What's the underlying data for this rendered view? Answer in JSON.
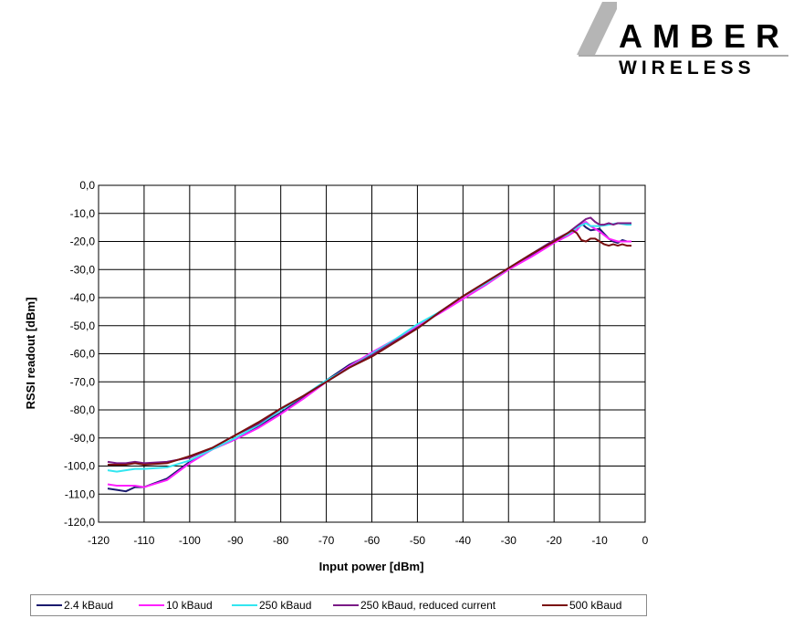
{
  "logo": {
    "line1": "AMBER",
    "line2": "WIRELESS"
  },
  "chart_data": {
    "type": "line",
    "title": "",
    "xlabel": "Input power [dBm]",
    "ylabel": "RSSI readout [dBm]",
    "xlim": [
      -120,
      0
    ],
    "ylim": [
      -120,
      0
    ],
    "x_ticks": [
      "-120",
      "-110",
      "-100",
      "-90",
      "-80",
      "-70",
      "-60",
      "-50",
      "-40",
      "-30",
      "-20",
      "-10",
      "0"
    ],
    "y_ticks": [
      "0,0",
      "-10,0",
      "-20,0",
      "-30,0",
      "-40,0",
      "-50,0",
      "-60,0",
      "-70,0",
      "-80,0",
      "-90,0",
      "-100,0",
      "-110,0",
      "-120,0"
    ],
    "grid": true,
    "legend_position": "bottom",
    "series": [
      {
        "name": "2.4 kBaud",
        "color": "#1a1a6e",
        "points": [
          [
            -118,
            -108
          ],
          [
            -116,
            -108.5
          ],
          [
            -114,
            -109
          ],
          [
            -112,
            -107.5
          ],
          [
            -110,
            -107.5
          ],
          [
            -105,
            -104.5
          ],
          [
            -100,
            -98.5
          ],
          [
            -95,
            -94
          ],
          [
            -90,
            -90.5
          ],
          [
            -85,
            -86
          ],
          [
            -80,
            -81
          ],
          [
            -75,
            -75.5
          ],
          [
            -70,
            -69.5
          ],
          [
            -65,
            -64
          ],
          [
            -60,
            -60
          ],
          [
            -55,
            -55
          ],
          [
            -50,
            -50.5
          ],
          [
            -45,
            -45
          ],
          [
            -40,
            -39.5
          ],
          [
            -35,
            -35
          ],
          [
            -30,
            -29.5
          ],
          [
            -25,
            -25
          ],
          [
            -20,
            -20
          ],
          [
            -17,
            -17.5
          ],
          [
            -15,
            -16
          ],
          [
            -14,
            -13.5
          ],
          [
            -13,
            -15
          ],
          [
            -12,
            -16
          ],
          [
            -10,
            -15.5
          ],
          [
            -8,
            -19
          ],
          [
            -7,
            -20
          ],
          [
            -6,
            -20.5
          ],
          [
            -5,
            -19.5
          ],
          [
            -4,
            -20
          ],
          [
            -3,
            -20
          ]
        ]
      },
      {
        "name": "10 kBaud",
        "color": "#ff20ff",
        "points": [
          [
            -118,
            -106.5
          ],
          [
            -116,
            -107
          ],
          [
            -114,
            -107
          ],
          [
            -112,
            -107
          ],
          [
            -110,
            -107.5
          ],
          [
            -105,
            -105
          ],
          [
            -100,
            -99
          ],
          [
            -95,
            -94
          ],
          [
            -90,
            -90.5
          ],
          [
            -85,
            -86.5
          ],
          [
            -80,
            -81.5
          ],
          [
            -75,
            -76
          ],
          [
            -70,
            -70
          ],
          [
            -65,
            -64.5
          ],
          [
            -60,
            -59.5
          ],
          [
            -55,
            -55
          ],
          [
            -50,
            -50
          ],
          [
            -45,
            -45.5
          ],
          [
            -40,
            -40.5
          ],
          [
            -35,
            -35.5
          ],
          [
            -30,
            -30
          ],
          [
            -25,
            -25.5
          ],
          [
            -20,
            -20.5
          ],
          [
            -17,
            -18
          ],
          [
            -15,
            -16
          ],
          [
            -14,
            -14
          ],
          [
            -13,
            -13
          ],
          [
            -12,
            -14.5
          ],
          [
            -10,
            -16.5
          ],
          [
            -8,
            -19
          ],
          [
            -6,
            -20
          ],
          [
            -4,
            -20
          ],
          [
            -3,
            -20
          ]
        ]
      },
      {
        "name": "250 kBaud",
        "color": "#33e6f0",
        "points": [
          [
            -118,
            -101.5
          ],
          [
            -116,
            -102
          ],
          [
            -114,
            -101.5
          ],
          [
            -112,
            -101
          ],
          [
            -110,
            -101
          ],
          [
            -105,
            -100.5
          ],
          [
            -100,
            -98
          ],
          [
            -95,
            -94
          ],
          [
            -90,
            -90
          ],
          [
            -85,
            -85.5
          ],
          [
            -80,
            -80
          ],
          [
            -75,
            -75
          ],
          [
            -70,
            -69.5
          ],
          [
            -65,
            -65
          ],
          [
            -60,
            -60
          ],
          [
            -55,
            -55
          ],
          [
            -50,
            -49.5
          ],
          [
            -45,
            -45
          ],
          [
            -40,
            -39.5
          ],
          [
            -35,
            -35
          ],
          [
            -30,
            -29.5
          ],
          [
            -25,
            -24.5
          ],
          [
            -20,
            -19.5
          ],
          [
            -17,
            -17.5
          ],
          [
            -15,
            -15
          ],
          [
            -13,
            -13.5
          ],
          [
            -12,
            -14.5
          ],
          [
            -10,
            -14.5
          ],
          [
            -8,
            -14
          ],
          [
            -6,
            -13.5
          ],
          [
            -4,
            -14
          ],
          [
            -3,
            -14
          ]
        ]
      },
      {
        "name": "250 kBaud, reduced current",
        "color": "#7a1a86",
        "points": [
          [
            -118,
            -98.5
          ],
          [
            -116,
            -99
          ],
          [
            -114,
            -99
          ],
          [
            -112,
            -98.5
          ],
          [
            -110,
            -99
          ],
          [
            -105,
            -98.5
          ],
          [
            -100,
            -97
          ],
          [
            -95,
            -93.5
          ],
          [
            -90,
            -89
          ],
          [
            -85,
            -85
          ],
          [
            -80,
            -79.5
          ],
          [
            -75,
            -75
          ],
          [
            -70,
            -70
          ],
          [
            -65,
            -65
          ],
          [
            -60,
            -60.5
          ],
          [
            -55,
            -55.5
          ],
          [
            -50,
            -51
          ],
          [
            -45,
            -45
          ],
          [
            -40,
            -39.5
          ],
          [
            -35,
            -34.5
          ],
          [
            -30,
            -29.5
          ],
          [
            -25,
            -24.5
          ],
          [
            -20,
            -19.5
          ],
          [
            -17,
            -17
          ],
          [
            -15,
            -14.5
          ],
          [
            -13,
            -12
          ],
          [
            -12,
            -11.5
          ],
          [
            -11,
            -13
          ],
          [
            -10,
            -14
          ],
          [
            -9,
            -14
          ],
          [
            -8,
            -13.5
          ],
          [
            -7,
            -14
          ],
          [
            -6,
            -13.5
          ],
          [
            -4,
            -13.5
          ],
          [
            -3,
            -13.5
          ]
        ]
      },
      {
        "name": "500 kBaud",
        "color": "#7a1010",
        "points": [
          [
            -118,
            -99.5
          ],
          [
            -116,
            -99.5
          ],
          [
            -114,
            -99.5
          ],
          [
            -112,
            -99
          ],
          [
            -110,
            -99.5
          ],
          [
            -105,
            -99
          ],
          [
            -100,
            -96.5
          ],
          [
            -95,
            -93.5
          ],
          [
            -90,
            -89
          ],
          [
            -85,
            -84.5
          ],
          [
            -80,
            -79.5
          ],
          [
            -75,
            -75
          ],
          [
            -70,
            -70
          ],
          [
            -65,
            -65
          ],
          [
            -60,
            -61
          ],
          [
            -55,
            -56
          ],
          [
            -50,
            -51
          ],
          [
            -45,
            -45
          ],
          [
            -40,
            -39.5
          ],
          [
            -35,
            -34.5
          ],
          [
            -30,
            -29.5
          ],
          [
            -25,
            -24.5
          ],
          [
            -20,
            -20
          ],
          [
            -18,
            -18
          ],
          [
            -16,
            -16
          ],
          [
            -15,
            -17
          ],
          [
            -14,
            -19.5
          ],
          [
            -13,
            -20
          ],
          [
            -12,
            -19
          ],
          [
            -11,
            -19
          ],
          [
            -10,
            -20
          ],
          [
            -9,
            -21
          ],
          [
            -8,
            -21.5
          ],
          [
            -7,
            -21
          ],
          [
            -6,
            -21.5
          ],
          [
            -5,
            -21
          ],
          [
            -4,
            -21.5
          ],
          [
            -3,
            -21.5
          ]
        ]
      }
    ]
  }
}
